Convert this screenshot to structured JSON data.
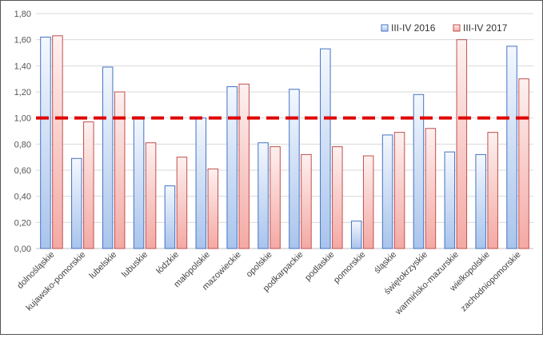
{
  "chart_data": {
    "type": "bar",
    "categories": [
      "dolnośląskie",
      "kujawsko-pomorskie",
      "lubelskie",
      "lubuskie",
      "łódzkie",
      "małopolskie",
      "mazowieckie",
      "opolskie",
      "podkarpackie",
      "podlaskie",
      "pomorskie",
      "śląskie",
      "świętokrzyskie",
      "warmińsko-mazurskie",
      "wielkopolskie",
      "zachodniopomorskie"
    ],
    "series": [
      {
        "name": "III-IV 2016",
        "values": [
          1.62,
          0.69,
          1.39,
          1.01,
          0.48,
          1.0,
          1.24,
          0.81,
          1.22,
          1.53,
          0.21,
          0.87,
          1.18,
          0.74,
          0.72,
          1.55
        ],
        "color": "#4472C4",
        "fill": "#C5D7F2"
      },
      {
        "name": "III-IV 2017",
        "values": [
          1.63,
          0.97,
          1.2,
          0.81,
          0.7,
          0.61,
          1.26,
          0.78,
          0.72,
          0.78,
          0.71,
          0.89,
          0.92,
          1.6,
          0.89,
          1.3
        ],
        "color": "#C0504D",
        "fill": "#F7C8C5"
      }
    ],
    "ylim": [
      0,
      1.8
    ],
    "yticks": [
      "0,00",
      "0,20",
      "0,40",
      "0,60",
      "0,80",
      "1,00",
      "1,20",
      "1,40",
      "1,60",
      "1,80"
    ],
    "reference_line": {
      "value": 1.0,
      "color": "#E00000",
      "style": "dashed"
    },
    "legend_position": "top-right",
    "grid": true
  }
}
